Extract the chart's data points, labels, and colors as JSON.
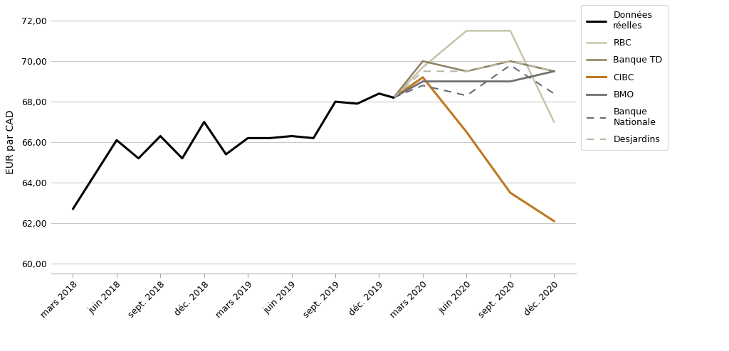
{
  "ylabel": "EUR par CAD",
  "ylim": [
    59.5,
    72.5
  ],
  "yticks": [
    60.0,
    62.0,
    64.0,
    66.0,
    68.0,
    70.0,
    72.0
  ],
  "x_labels": [
    "mars 2018",
    "juin 2018",
    "sept. 2018",
    "déc. 2018",
    "mars 2019",
    "juin 2019",
    "sept. 2019",
    "déc. 2019",
    "mars 2020",
    "juin 2020",
    "sept. 2020",
    "déc. 2020"
  ],
  "donnees_reelles": {
    "x": [
      0,
      1,
      1.5,
      2,
      2.5,
      3,
      3.5,
      4,
      4.5,
      5,
      5.5,
      6,
      6.5,
      7,
      7.33
    ],
    "y": [
      62.7,
      66.1,
      65.2,
      66.3,
      65.2,
      67.0,
      65.4,
      66.2,
      66.2,
      66.3,
      66.2,
      68.0,
      67.9,
      68.4,
      68.2
    ],
    "color": "#000000",
    "linewidth": 2.2,
    "label": "Données\nréelles"
  },
  "rbc": {
    "x": [
      7.33,
      8,
      9,
      10,
      11
    ],
    "y": [
      68.2,
      69.7,
      71.5,
      71.5,
      67.0
    ],
    "color": "#c8c4aa",
    "linewidth": 1.8,
    "label": "RBC"
  },
  "banque_td": {
    "x": [
      7.33,
      8,
      9,
      10,
      11
    ],
    "y": [
      68.2,
      70.0,
      69.5,
      70.0,
      69.5
    ],
    "color": "#8b8060",
    "linewidth": 1.8,
    "label": "Banque TD"
  },
  "cibc": {
    "x": [
      7.33,
      8,
      9,
      10,
      11
    ],
    "y": [
      68.2,
      69.2,
      66.5,
      63.5,
      62.1
    ],
    "color": "#c07820",
    "linewidth": 2.2,
    "label": "CIBC"
  },
  "bmo": {
    "x": [
      7.33,
      8,
      9,
      10,
      11
    ],
    "y": [
      68.2,
      69.0,
      69.0,
      69.0,
      69.5
    ],
    "color": "#707070",
    "linewidth": 2.0,
    "label": "BMO"
  },
  "banque_nationale": {
    "x": [
      7.33,
      8,
      9,
      10,
      11
    ],
    "y": [
      68.2,
      68.8,
      68.3,
      69.8,
      68.4
    ],
    "color": "#6a6a7a",
    "linewidth": 1.5,
    "linestyle": "--",
    "label": "Banque\nNationale"
  },
  "desjardins": {
    "x": [
      7.33,
      8,
      9,
      10,
      11
    ],
    "y": [
      68.2,
      69.5,
      69.5,
      70.0,
      69.5
    ],
    "color": "#b8b8a0",
    "linewidth": 1.5,
    "linestyle": "--",
    "label": "Desjardins"
  },
  "background_color": "#ffffff",
  "grid_color": "#c8c8c8"
}
